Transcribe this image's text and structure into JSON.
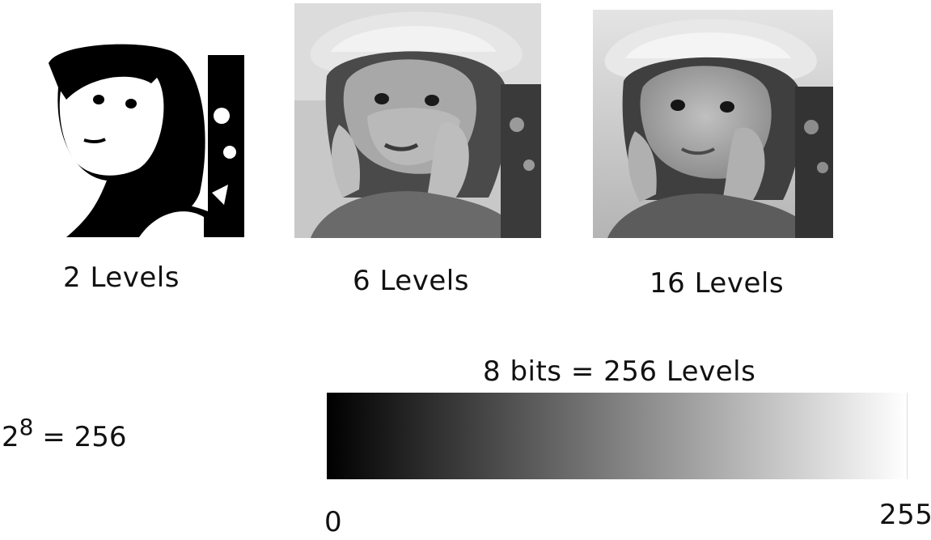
{
  "panels": [
    {
      "label": "2 Levels",
      "icon": "girl-with-hat-2-level-image"
    },
    {
      "label": "6 Levels",
      "icon": "girl-with-hat-6-level-image"
    },
    {
      "label": "16 Levels",
      "icon": "girl-with-hat-16-level-image"
    }
  ],
  "formula": {
    "base": "2",
    "exponent": "8",
    "rest": " = 256"
  },
  "bar": {
    "title": "8 bits = 256 Levels",
    "min_label": "0",
    "max_label": "255",
    "from_color": "#000000",
    "to_color": "#ffffff"
  }
}
